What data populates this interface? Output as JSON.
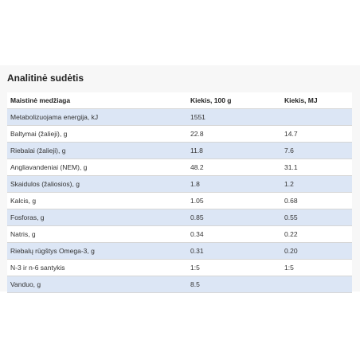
{
  "section": {
    "title": "Analitinė sudėtis"
  },
  "table": {
    "headers": [
      "Maistinė medžiaga",
      "Kiekis, 100 g",
      "Kiekis, MJ"
    ],
    "rows": [
      [
        "Metabolizuojama energija, kJ",
        "1551",
        ""
      ],
      [
        "Baltymai (žalieji), g",
        "22.8",
        "14.7"
      ],
      [
        "Riebalai (žalieji), g",
        "11.8",
        "7.6"
      ],
      [
        "Angliavandeniai (NEM), g",
        "48.2",
        "31.1"
      ],
      [
        "Skaidulos (žaliosios),  g",
        "1.8",
        "1.2"
      ],
      [
        "Kalcis, g",
        "1.05",
        "0.68"
      ],
      [
        "Fosforas, g",
        "0.85",
        "0.55"
      ],
      [
        "Natris, g",
        "0.34",
        "0.22"
      ],
      [
        "Riebalų rūgštys Omega-3, g",
        "0.31",
        "0.20"
      ],
      [
        "N-3 ir n-6 santykis",
        "1:5",
        "1:5"
      ],
      [
        "Vanduo, g",
        "8.5",
        ""
      ]
    ]
  },
  "colors": {
    "row_stripe": "#dce6f5",
    "panel_background": "#f7f7f7"
  }
}
